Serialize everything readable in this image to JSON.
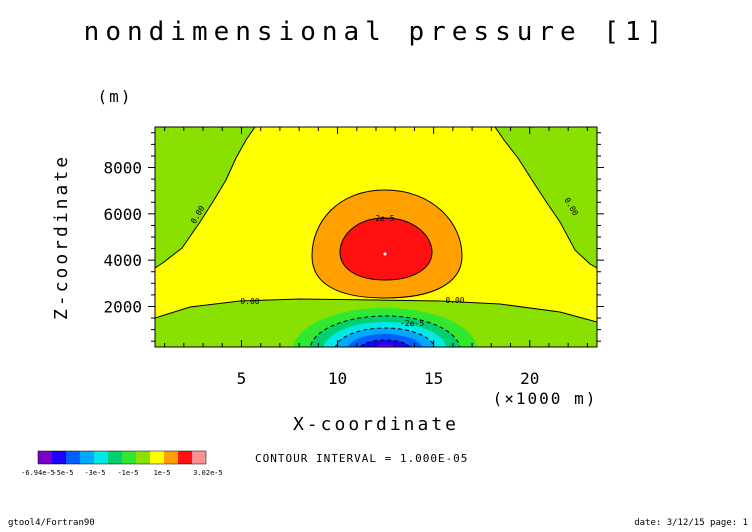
{
  "chart_data": {
    "type": "contour",
    "title": "nondimensional pressure [1]",
    "xlabel": "X-coordinate",
    "xunit": "(×1000 m)",
    "ylabel": "Z-coordinate",
    "yunit": "(m)",
    "xlim": [
      0.5,
      23.5
    ],
    "ylim": [
      250,
      9750
    ],
    "x_ticks": [
      5,
      10,
      15,
      20
    ],
    "x_tick_labels": [
      "5",
      "10",
      "15",
      "20"
    ],
    "y_ticks": [
      2000,
      4000,
      6000,
      8000
    ],
    "y_tick_labels": [
      "2000",
      "4000",
      "6000",
      "8000"
    ],
    "contour_interval_label": "CONTOUR INTERVAL = 1.000E-05",
    "contour_labels": [
      "0.00",
      "0.00",
      "0.00",
      "0.00",
      "2e-5",
      "-2e-5"
    ],
    "max_location": {
      "x": 12.5,
      "z": 4300
    },
    "min_location": {
      "x": 12.5,
      "z": 250
    },
    "colorbar": {
      "colors": [
        "#7a00c8",
        "#2000ff",
        "#0060ff",
        "#00a8ff",
        "#00e8e8",
        "#00d070",
        "#30e830",
        "#8ae000",
        "#ffff00",
        "#ffa000",
        "#ff1010",
        "#ff9090"
      ],
      "tick_labels": [
        "-6.94e-5",
        "-5e-5",
        "-3e-5",
        "-1e-5",
        "1e-5",
        "3.02e-5"
      ]
    }
  },
  "footer": {
    "left": "gtool4/Fortran90",
    "right": "date: 3/12/15 page: 1"
  }
}
